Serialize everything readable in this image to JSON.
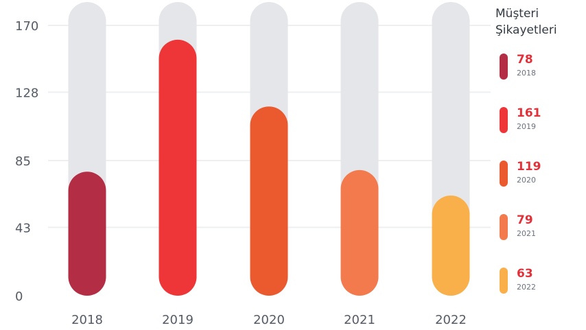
{
  "chart_data": {
    "type": "bar",
    "title": "Müşteri Şikayetleri",
    "categories": [
      "2018",
      "2019",
      "2020",
      "2021",
      "2022"
    ],
    "values": [
      78,
      161,
      119,
      79,
      63
    ],
    "colors": [
      "#b32e44",
      "#ee3537",
      "#eb5a2e",
      "#f37a4c",
      "#f9b04a"
    ],
    "ylim": [
      0,
      190
    ],
    "yticks": [
      0,
      43,
      85,
      128,
      170
    ],
    "grid": true,
    "legend_position": "right"
  },
  "legend": {
    "title_line1": "Müşteri",
    "title_line2": "Şikayetleri",
    "items": [
      {
        "value": "78",
        "year": "2018"
      },
      {
        "value": "161",
        "year": "2019"
      },
      {
        "value": "119",
        "year": "2020"
      },
      {
        "value": "79",
        "year": "2021"
      },
      {
        "value": "63",
        "year": "2022"
      }
    ]
  }
}
